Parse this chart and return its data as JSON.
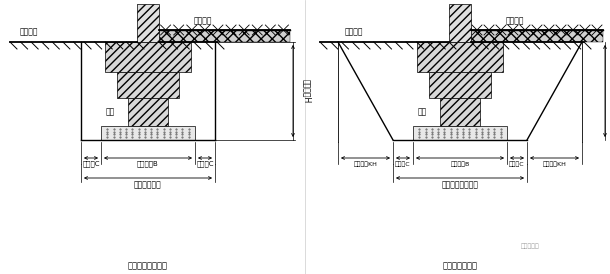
{
  "bg_color": "#ffffff",
  "line_color": "#000000",
  "text_color": "#000000",
  "fig_width": 6.1,
  "fig_height": 2.74,
  "dpi": 100,
  "left": {
    "label_outdoor": "室外地坪",
    "label_indoor": "室内地坪",
    "label_jichu": "基础",
    "label_depth": "开挖深度H",
    "label_work_l": "工作面C",
    "label_work_r": "工作面C",
    "label_base_w": "基础宽度B",
    "label_trench": "基槽开挖宽度",
    "label_title": "不放坡的基槽断面"
  },
  "right": {
    "label_outdoor": "室外地坪",
    "label_indoor": "室内地坪",
    "label_jichu": "基础",
    "label_work_l": "工作面C",
    "label_work_r": "工作面C",
    "label_base_w": "基础宽度B",
    "label_slope_l": "放坡宽度KH",
    "label_slope_r": "放坡宽度KH",
    "label_trench": "基槽基底开挖宽度",
    "label_title": "放坡的基槽断面"
  },
  "watermark": "建筑大家园"
}
